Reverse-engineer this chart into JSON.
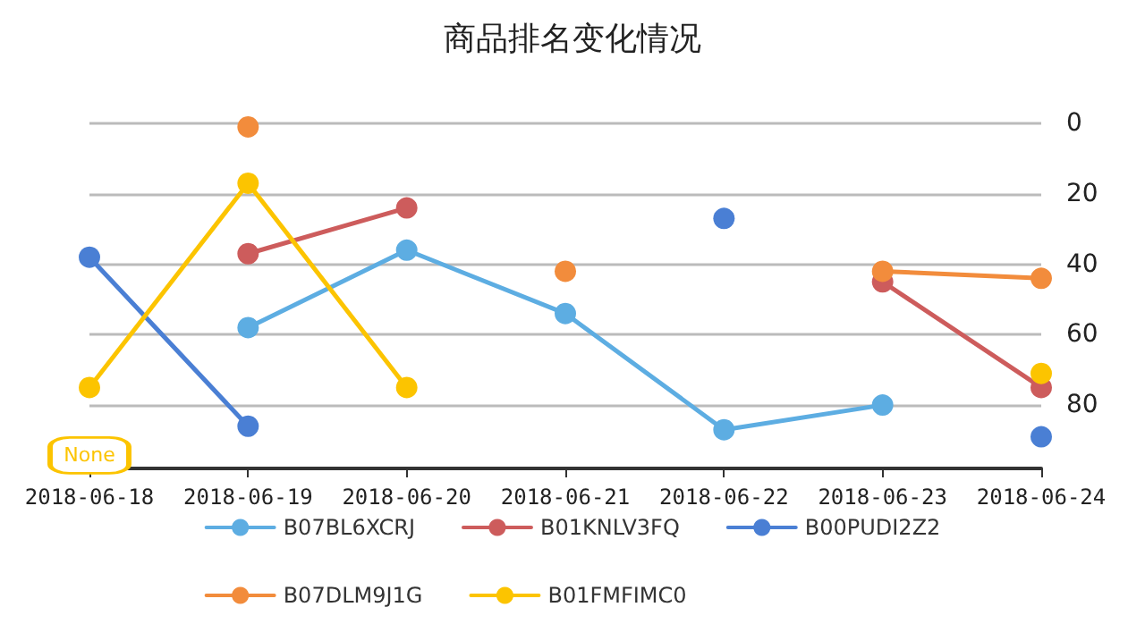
{
  "chart_data": {
    "type": "line",
    "title": "商品排名变化情况",
    "categories": [
      "2018-06-18",
      "2018-06-19",
      "2018-06-20",
      "2018-06-21",
      "2018-06-22",
      "2018-06-23",
      "2018-06-24"
    ],
    "series": [
      {
        "name": "B07BL6XCRJ",
        "color": "#5dade2",
        "values": [
          null,
          58,
          36,
          54,
          87,
          80,
          null
        ]
      },
      {
        "name": "B01KNLV3FQ",
        "color": "#cd5c5c",
        "values": [
          null,
          37,
          24,
          null,
          null,
          45,
          75
        ]
      },
      {
        "name": "B00PUDI2Z2",
        "color": "#4a7fd4",
        "values": [
          38,
          86,
          null,
          null,
          27,
          null,
          89
        ]
      },
      {
        "name": "B07DLM9J1G",
        "color": "#f28c3c",
        "values": [
          null,
          1,
          null,
          42,
          null,
          42,
          44
        ]
      },
      {
        "name": "B01FMFIMC0",
        "color": "#fcc400",
        "values": [
          75,
          17,
          75,
          null,
          null,
          null,
          71
        ]
      }
    ],
    "ylim": [
      98,
      0
    ],
    "yticks": [
      0,
      20,
      40,
      60,
      80
    ],
    "grid": "y",
    "legend": "bottom",
    "marker": "circle",
    "line_style": "solid",
    "annotations": [
      {
        "text": "None",
        "x": "2018-06-18",
        "y": 75
      }
    ]
  }
}
